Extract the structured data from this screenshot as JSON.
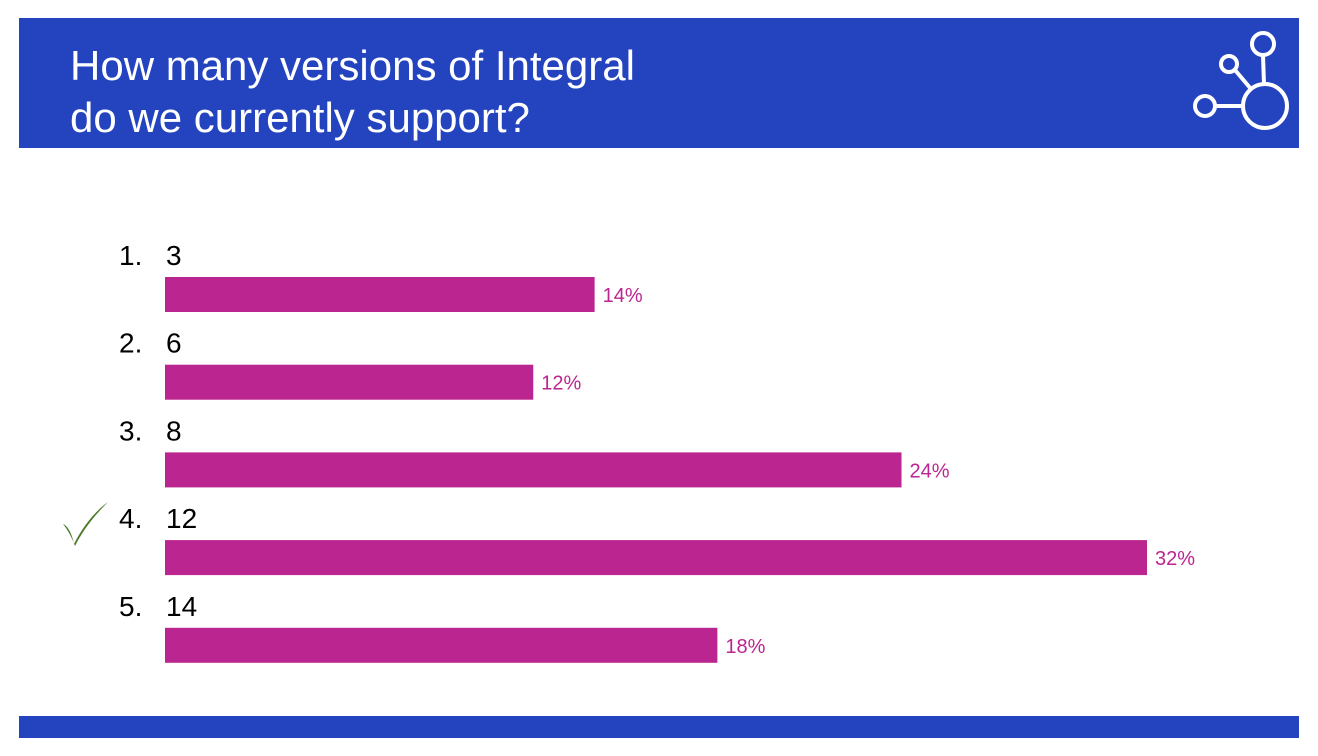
{
  "colors": {
    "header": "#2343bf",
    "bar": "#bb258f",
    "label": "#bb258f",
    "check": "#4e7a2a",
    "text": "#000000"
  },
  "header": {
    "title_line1": "How many versions of Integral",
    "title_line2": "do we currently support?",
    "logo_icon": "network-nodes-icon"
  },
  "correct_marker_icon": "checkmark-icon",
  "chart_data": {
    "type": "bar",
    "orientation": "horizontal",
    "title": "How many versions of Integral do we currently support?",
    "categories": [
      "1.  3",
      "2.  6",
      "3.  8",
      "4.  12",
      "5.  14"
    ],
    "values": [
      14,
      12,
      24,
      32,
      18
    ],
    "value_labels": [
      "14%",
      "12%",
      "24%",
      "32%",
      "18%"
    ],
    "unit": "%",
    "xlim": [
      0,
      32
    ],
    "grid": false,
    "legend": "none",
    "correct_answer": "4.  12"
  }
}
